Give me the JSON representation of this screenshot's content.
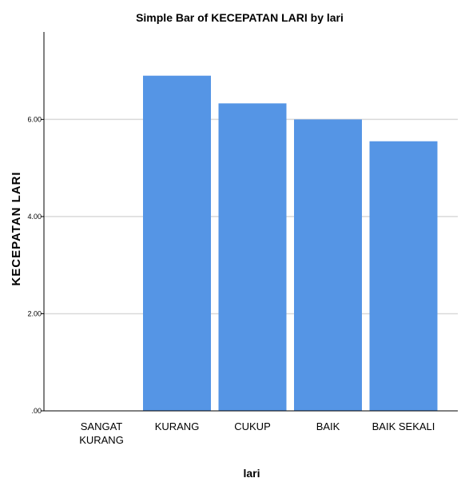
{
  "chart_data": {
    "type": "bar",
    "title": "Simple Bar of KECEPATAN LARI by lari",
    "xlabel": "lari",
    "ylabel": "KECEPATAN LARI",
    "categories": [
      "SANGAT KURANG",
      "KURANG",
      "CUKUP",
      "BAIK",
      "BAIK SEKALI"
    ],
    "category_lines": [
      [
        "SANGAT",
        "KURANG"
      ],
      [
        "KURANG"
      ],
      [
        "CUKUP"
      ],
      [
        "BAIK"
      ],
      [
        "BAIK SEKALI"
      ]
    ],
    "values": [
      0,
      6.9,
      6.33,
      6.0,
      5.55
    ],
    "ylim": [
      0,
      7.8
    ],
    "yticks": [
      0,
      2,
      4,
      6
    ],
    "ytick_labels": [
      ".00",
      "2.00",
      "4.00",
      "6.00"
    ],
    "grid": true,
    "legend": "none",
    "bar_color": "#5595e5",
    "grid_color": "#d9d9d9"
  }
}
